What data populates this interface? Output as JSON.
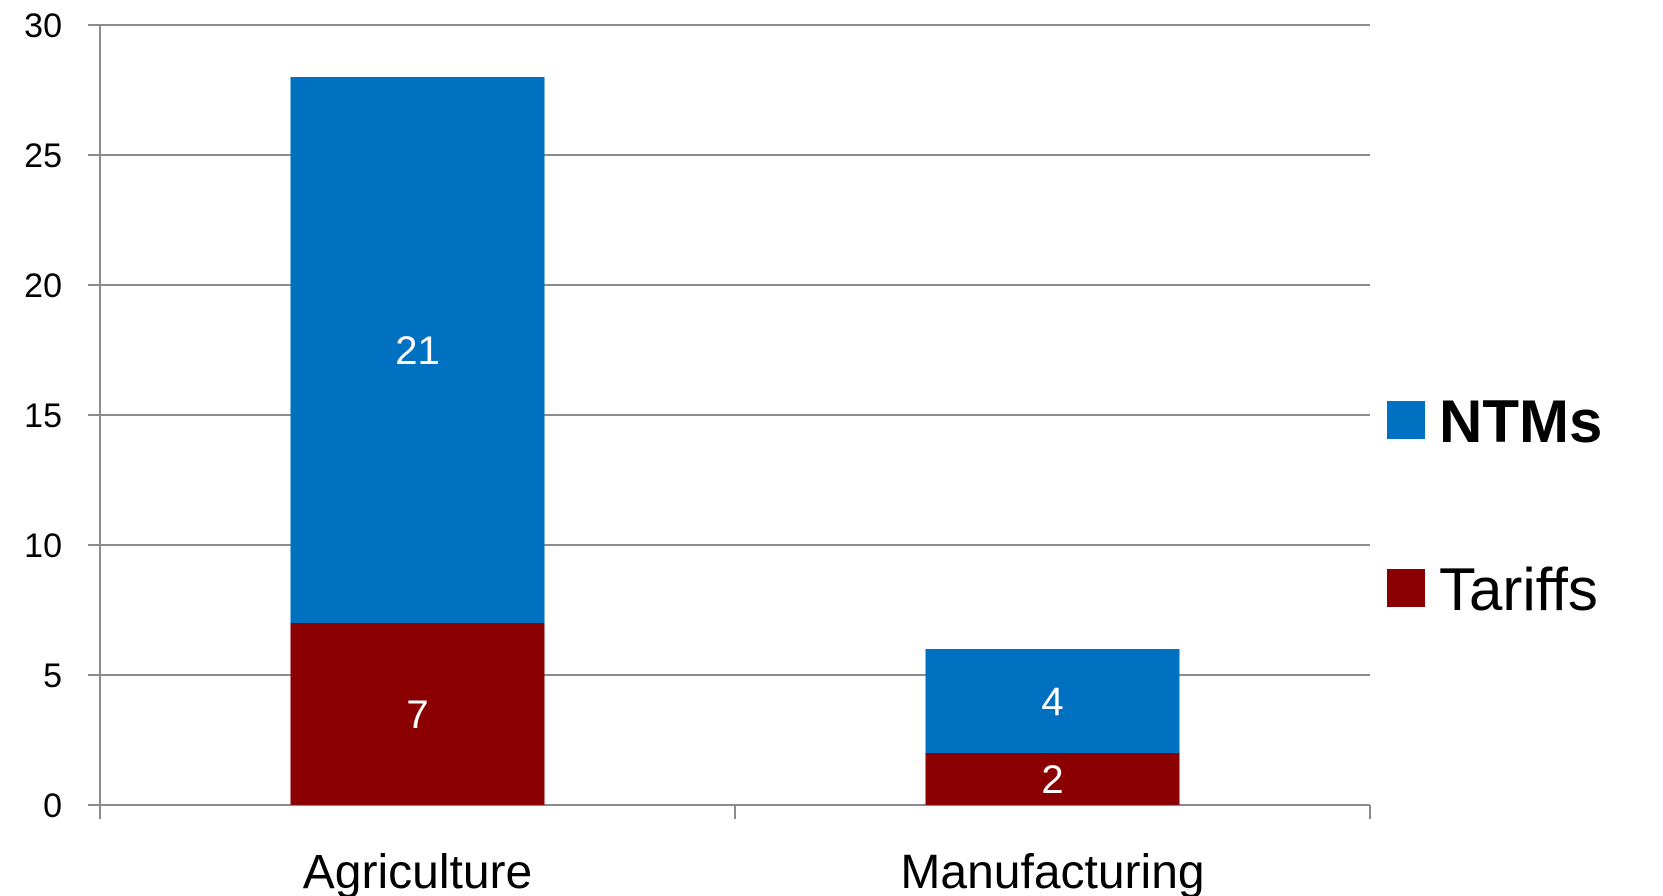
{
  "chart_data": {
    "type": "bar",
    "stacked": true,
    "categories": [
      "Agriculture",
      "Manufacturing"
    ],
    "series": [
      {
        "name": "Tariffs",
        "values": [
          7,
          2
        ],
        "color": "#8B0000"
      },
      {
        "name": "NTMs",
        "values": [
          21,
          4
        ],
        "color": "#0070C0"
      }
    ],
    "ylim": [
      0,
      30
    ],
    "yticks": [
      0,
      5,
      10,
      15,
      20,
      25,
      30
    ],
    "grid": true,
    "data_labels": true,
    "legend": {
      "position": "right",
      "entries": [
        {
          "label": "NTMs",
          "bold": true,
          "color": "#0070C0"
        },
        {
          "label": "Tariffs",
          "bold": false,
          "color": "#8B0000"
        }
      ]
    },
    "title": "",
    "xlabel": "",
    "ylabel": ""
  }
}
